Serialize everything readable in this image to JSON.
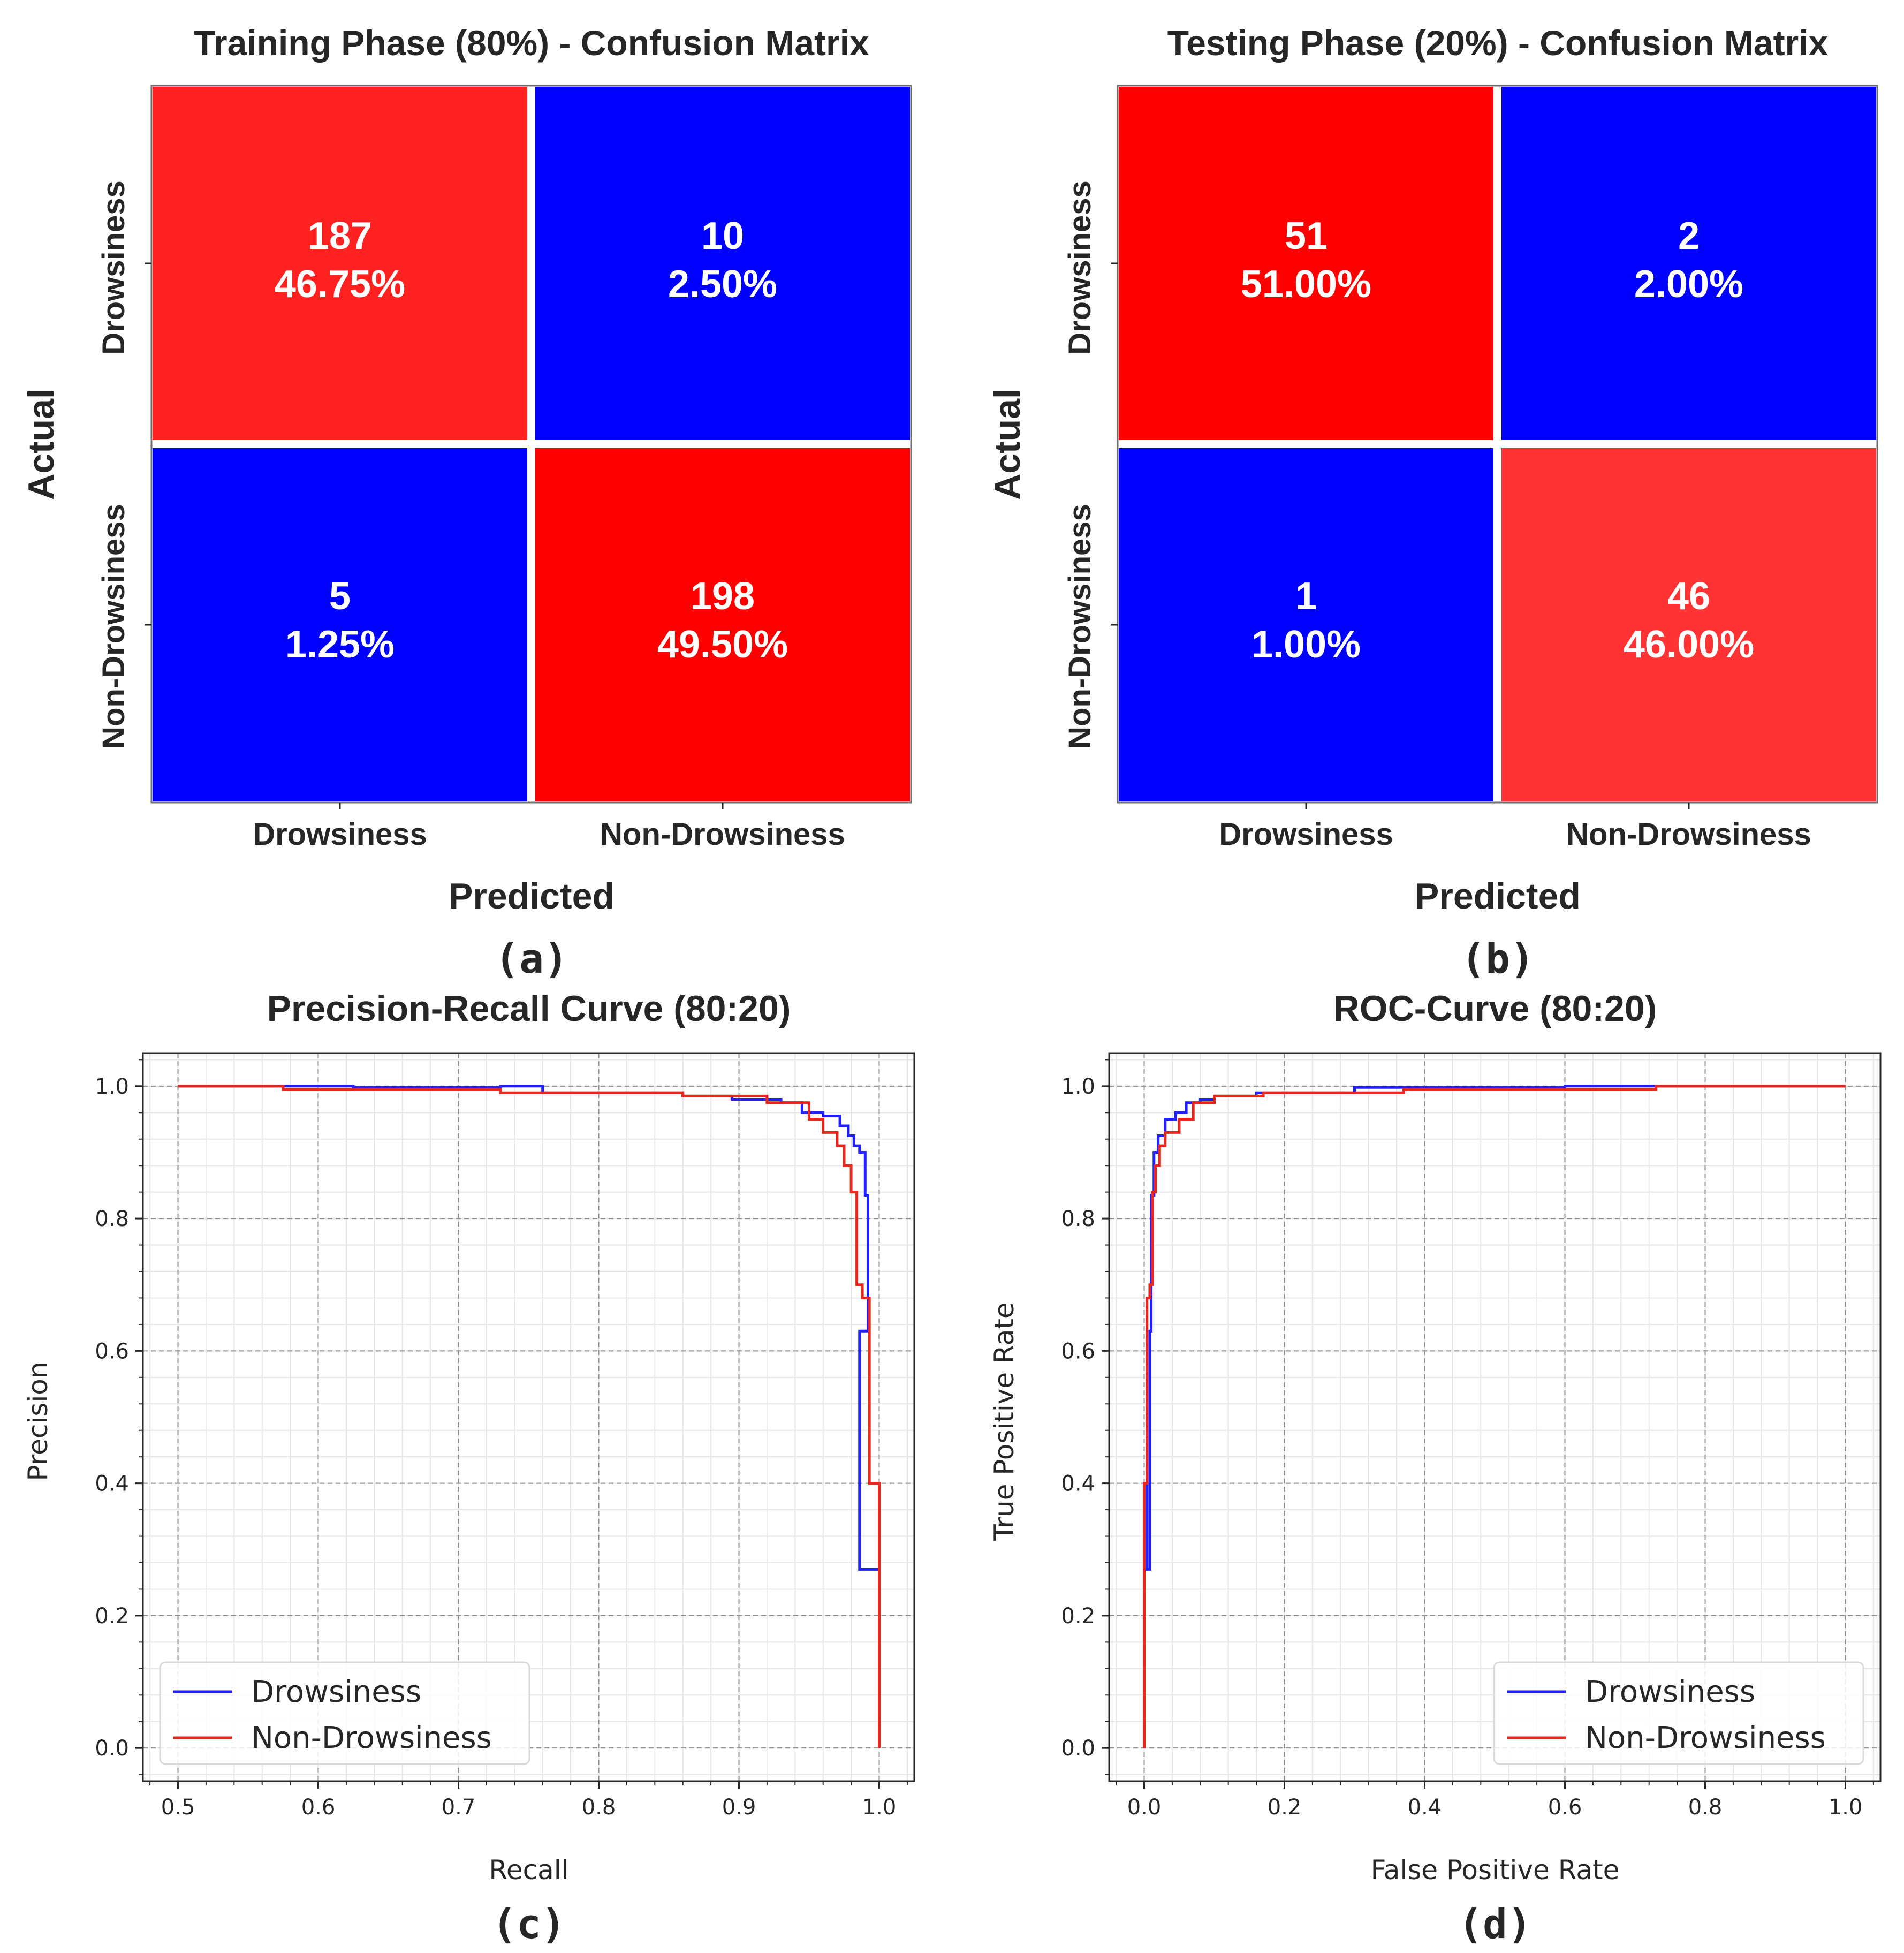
{
  "colors": {
    "red": "#ff0000",
    "red_light": "#ff2020",
    "red_lighter": "#ff3333",
    "blue": "#0000ff",
    "drowsiness_line": "#1f1fff",
    "non_drowsiness_line": "#e8281e"
  },
  "captions": {
    "a": "(a)",
    "b": "(b)",
    "c": "(c)",
    "d": "(d)"
  },
  "chart_data": [
    {
      "id": "a",
      "type": "heatmap",
      "title": "Training Phase (80%) - Confusion Matrix",
      "xlabel": "Predicted",
      "ylabel": "Actual",
      "x_categories": [
        "Drowsiness",
        "Non-Drowsiness"
      ],
      "y_categories": [
        "Drowsiness",
        "Non-Drowsiness"
      ],
      "counts": [
        [
          187,
          10
        ],
        [
          5,
          198
        ]
      ],
      "labels": [
        [
          "187",
          "10"
        ],
        [
          "5",
          "198"
        ]
      ],
      "percents": [
        [
          "46.75%",
          "2.50%"
        ],
        [
          "1.25%",
          "49.50%"
        ]
      ]
    },
    {
      "id": "b",
      "type": "heatmap",
      "title": "Testing Phase (20%) - Confusion Matrix",
      "xlabel": "Predicted",
      "ylabel": "Actual",
      "x_categories": [
        "Drowsiness",
        "Non-Drowsiness"
      ],
      "y_categories": [
        "Drowsiness",
        "Non-Drowsiness"
      ],
      "counts": [
        [
          51,
          2
        ],
        [
          1,
          46
        ]
      ],
      "labels": [
        [
          "51",
          "2"
        ],
        [
          "1",
          "46"
        ]
      ],
      "percents": [
        [
          "51.00%",
          "2.00%"
        ],
        [
          "1.00%",
          "46.00%"
        ]
      ]
    },
    {
      "id": "c",
      "type": "line",
      "title": "Precision-Recall Curve (80:20)",
      "xlabel": "Recall",
      "ylabel": "Precision",
      "xlim": [
        0.475,
        1.025
      ],
      "ylim": [
        -0.05,
        1.05
      ],
      "xticks": [
        "0.5",
        "0.6",
        "0.7",
        "0.8",
        "0.9",
        "1.0"
      ],
      "yticks": [
        "0.0",
        "0.2",
        "0.4",
        "0.6",
        "0.8",
        "1.0"
      ],
      "legend_position": "lower-left",
      "series": [
        {
          "name": "Drowsiness",
          "x": [
            0.5,
            0.625,
            0.625,
            0.73,
            0.73,
            0.76,
            0.76,
            0.86,
            0.86,
            0.895,
            0.895,
            0.93,
            0.93,
            0.945,
            0.945,
            0.96,
            0.96,
            0.972,
            0.972,
            0.978,
            0.978,
            0.982,
            0.982,
            0.986,
            0.986,
            0.99,
            0.99,
            0.992,
            0.992,
            0.986,
            0.986,
            1.0,
            1.0
          ],
          "y": [
            1.0,
            1.0,
            0.998,
            0.998,
            1.0,
            1.0,
            0.99,
            0.99,
            0.985,
            0.985,
            0.98,
            0.98,
            0.975,
            0.975,
            0.96,
            0.96,
            0.955,
            0.955,
            0.94,
            0.94,
            0.925,
            0.925,
            0.91,
            0.91,
            0.9,
            0.9,
            0.835,
            0.835,
            0.63,
            0.63,
            0.27,
            0.27,
            0.0
          ]
        },
        {
          "name": "Non-Drowsiness",
          "x": [
            0.5,
            0.575,
            0.575,
            0.73,
            0.73,
            0.86,
            0.86,
            0.92,
            0.92,
            0.95,
            0.95,
            0.96,
            0.96,
            0.97,
            0.97,
            0.975,
            0.975,
            0.98,
            0.98,
            0.984,
            0.984,
            0.988,
            0.988,
            0.993,
            0.993,
            1.0,
            1.0
          ],
          "y": [
            1.0,
            1.0,
            0.995,
            0.995,
            0.99,
            0.99,
            0.985,
            0.985,
            0.975,
            0.975,
            0.95,
            0.95,
            0.93,
            0.93,
            0.91,
            0.91,
            0.88,
            0.88,
            0.84,
            0.84,
            0.7,
            0.7,
            0.68,
            0.68,
            0.4,
            0.4,
            0.0
          ]
        }
      ]
    },
    {
      "id": "d",
      "type": "line",
      "title": "ROC-Curve (80:20)",
      "xlabel": "False Positive Rate",
      "ylabel": "True Positive Rate",
      "xlim": [
        -0.05,
        1.05
      ],
      "ylim": [
        -0.05,
        1.05
      ],
      "xticks": [
        "0.0",
        "0.2",
        "0.4",
        "0.6",
        "0.8",
        "1.0"
      ],
      "yticks": [
        "0.0",
        "0.2",
        "0.4",
        "0.6",
        "0.8",
        "1.0"
      ],
      "legend_position": "lower-right",
      "series": [
        {
          "name": "Drowsiness",
          "x": [
            0.0,
            0.0,
            0.004,
            0.004,
            0.008,
            0.008,
            0.01,
            0.01,
            0.014,
            0.014,
            0.02,
            0.02,
            0.03,
            0.03,
            0.045,
            0.045,
            0.06,
            0.06,
            0.08,
            0.08,
            0.1,
            0.1,
            0.16,
            0.16,
            0.3,
            0.3,
            0.37,
            0.37,
            0.6,
            0.6,
            0.73,
            0.73,
            1.0
          ],
          "y": [
            0.0,
            0.4,
            0.4,
            0.27,
            0.27,
            0.63,
            0.63,
            0.835,
            0.835,
            0.9,
            0.9,
            0.925,
            0.925,
            0.95,
            0.95,
            0.96,
            0.96,
            0.975,
            0.975,
            0.98,
            0.98,
            0.985,
            0.985,
            0.99,
            0.99,
            0.998,
            0.998,
            0.998,
            0.998,
            1.0,
            1.0,
            1.0,
            1.0
          ]
        },
        {
          "name": "Non-Drowsiness",
          "x": [
            0.0,
            0.0,
            0.004,
            0.004,
            0.008,
            0.008,
            0.012,
            0.012,
            0.016,
            0.016,
            0.022,
            0.022,
            0.03,
            0.03,
            0.05,
            0.05,
            0.07,
            0.07,
            0.1,
            0.1,
            0.17,
            0.17,
            0.37,
            0.37,
            0.73,
            0.73,
            1.0
          ],
          "y": [
            0.0,
            0.4,
            0.4,
            0.68,
            0.68,
            0.7,
            0.7,
            0.84,
            0.84,
            0.88,
            0.88,
            0.91,
            0.91,
            0.93,
            0.93,
            0.95,
            0.95,
            0.975,
            0.975,
            0.985,
            0.985,
            0.99,
            0.99,
            0.995,
            0.995,
            1.0,
            1.0
          ]
        }
      ]
    }
  ]
}
